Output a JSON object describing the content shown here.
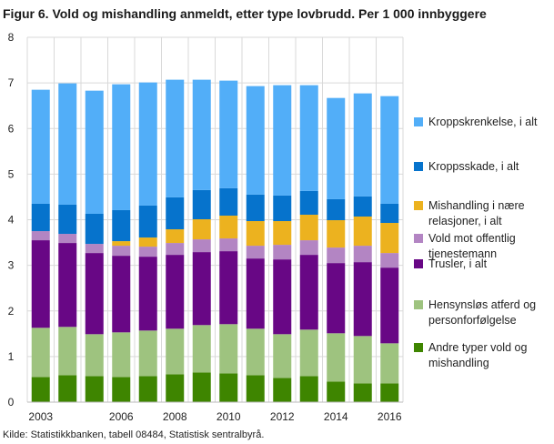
{
  "title": "Figur 6. Vold og mishandling anmeldt, etter type lovbrudd. Per 1 000 innbyggere",
  "source": "Kilde: Statistikkbanken, tabell 08484, Statistisk sentralbyrå.",
  "chart_data": {
    "type": "bar",
    "stacked": true,
    "title": "Figur 6. Vold og mishandling anmeldt, etter type lovbrudd. Per 1 000 innbyggere",
    "categories": [
      "2003",
      "2004",
      "2005",
      "2006",
      "2007",
      "2008",
      "2009",
      "2010",
      "2011",
      "2012",
      "2013",
      "2014",
      "2015",
      "2016"
    ],
    "x_tick_labels": [
      "2003",
      "",
      "",
      "2006",
      "",
      "2008",
      "",
      "2010",
      "",
      "2012",
      "",
      "2014",
      "",
      "2016"
    ],
    "y_ticks": [
      "0",
      "1",
      "2",
      "3",
      "4",
      "5",
      "6",
      "7",
      "8"
    ],
    "ylim": [
      0,
      8
    ],
    "grid": true,
    "legend_position": "right",
    "series": [
      {
        "name": "Andre typer vold og mishandling",
        "color": "#3e8500",
        "values": [
          0.55,
          0.59,
          0.57,
          0.55,
          0.57,
          0.61,
          0.65,
          0.63,
          0.59,
          0.53,
          0.57,
          0.45,
          0.41,
          0.41
        ]
      },
      {
        "name": "Hensynsløs atferd og personforfølgelse",
        "color": "#9ec37f",
        "values": [
          1.08,
          1.06,
          0.92,
          0.98,
          1.0,
          1.0,
          1.04,
          1.08,
          1.02,
          0.96,
          1.02,
          1.06,
          1.04,
          0.88
        ]
      },
      {
        "name": "Trusler, i alt",
        "color": "#680785",
        "values": [
          1.92,
          1.84,
          1.78,
          1.68,
          1.62,
          1.62,
          1.6,
          1.6,
          1.54,
          1.64,
          1.64,
          1.54,
          1.62,
          1.66
        ]
      },
      {
        "name": "Vold mot offentlig tjenestemann",
        "color": "#b385c3",
        "values": [
          0.2,
          0.2,
          0.2,
          0.22,
          0.22,
          0.26,
          0.28,
          0.28,
          0.28,
          0.32,
          0.32,
          0.34,
          0.36,
          0.32
        ]
      },
      {
        "name": "Mishandling i nære relasjoner, i alt",
        "color": "#ecb21f",
        "values": [
          0,
          0,
          0,
          0.1,
          0.2,
          0.3,
          0.44,
          0.5,
          0.54,
          0.52,
          0.56,
          0.6,
          0.64,
          0.66
        ]
      },
      {
        "name": "Kroppsskade, i alt",
        "color": "#0673cc",
        "values": [
          0.6,
          0.64,
          0.66,
          0.68,
          0.7,
          0.7,
          0.64,
          0.6,
          0.58,
          0.56,
          0.52,
          0.46,
          0.44,
          0.42
        ]
      },
      {
        "name": "Kroppskrenkelse, i alt",
        "color": "#52aef8",
        "values": [
          2.5,
          2.66,
          2.7,
          2.76,
          2.7,
          2.58,
          2.42,
          2.36,
          2.38,
          2.42,
          2.32,
          2.22,
          2.26,
          2.36
        ]
      }
    ],
    "legend_lines": [
      [
        "Kroppskrenkelse, i alt"
      ],
      [
        "Kroppsskade, i alt"
      ],
      [
        "Mishandling i nære",
        "relasjoner, i alt"
      ],
      [
        "Vold mot offentlig",
        "tjenestemann"
      ],
      [
        "Trusler, i alt"
      ],
      [
        "Hensynsløs atferd og",
        "personforfølgelse"
      ],
      [
        "Andre typer vold og",
        "mishandling"
      ]
    ]
  }
}
